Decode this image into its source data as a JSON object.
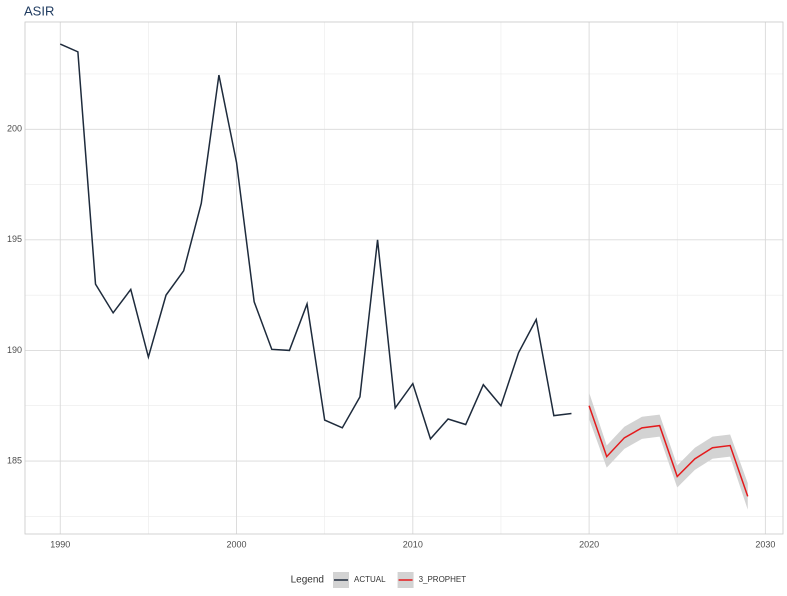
{
  "chart_data": {
    "type": "line",
    "title": "ASIR",
    "legend_title": "Legend",
    "legend_position": "bottom",
    "grid": true,
    "xlim": [
      1988,
      2031
    ],
    "ylim": [
      181.7,
      204.85
    ],
    "xticks": [
      1990,
      2000,
      2010,
      2020,
      2030
    ],
    "yticks": [
      185,
      190,
      195,
      200
    ],
    "xminor": [
      1995,
      2005,
      2015,
      2025
    ],
    "yminor": [
      182.5,
      187.5,
      192.5,
      197.5,
      202.5
    ],
    "series": [
      {
        "name": "ACTUAL",
        "color": "#1e2b3c",
        "x": [
          1990,
          1991,
          1992,
          1993,
          1994,
          1995,
          1996,
          1997,
          1998,
          1999,
          2000,
          2001,
          2002,
          2003,
          2004,
          2005,
          2006,
          2007,
          2008,
          2009,
          2010,
          2011,
          2012,
          2013,
          2014,
          2015,
          2016,
          2017,
          2018,
          2019
        ],
        "values": [
          203.85,
          203.5,
          193.0,
          191.7,
          192.76,
          189.7,
          192.5,
          193.6,
          196.65,
          202.45,
          198.5,
          192.2,
          190.05,
          190.0,
          192.1,
          186.85,
          186.5,
          187.9,
          195.0,
          187.4,
          188.5,
          186.0,
          186.9,
          186.65,
          188.45,
          187.5,
          189.9,
          191.4,
          187.05,
          187.15
        ]
      },
      {
        "name": "3_PROPHET",
        "color": "#e41a1c",
        "band_color": "#d3d3d3",
        "x": [
          2020,
          2021,
          2022,
          2023,
          2024,
          2025,
          2026,
          2027,
          2028,
          2029
        ],
        "values": [
          187.5,
          185.2,
          186.05,
          186.5,
          186.6,
          184.3,
          185.1,
          185.6,
          185.7,
          183.4
        ],
        "lower": [
          186.9,
          184.7,
          185.55,
          186.0,
          186.1,
          183.8,
          184.6,
          185.1,
          185.2,
          182.8
        ],
        "upper": [
          188.1,
          185.7,
          186.55,
          187.0,
          187.1,
          184.8,
          185.6,
          186.1,
          186.2,
          184.0
        ]
      }
    ]
  }
}
